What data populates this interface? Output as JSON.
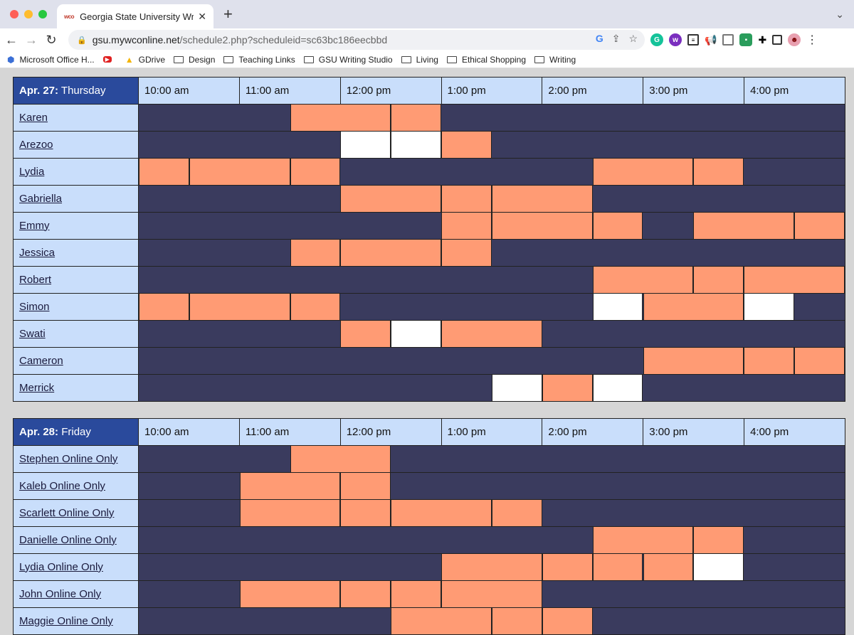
{
  "browser": {
    "tab_title": "Georgia State University Writin",
    "tab_favicon": "wco",
    "url_host": "gsu.mywconline.net",
    "url_path": "/schedule2.php?scheduleid=sc63bc186eecbbd"
  },
  "bookmarks": [
    {
      "label": "Microsoft Office H...",
      "icon": "office-icon"
    },
    {
      "label": "",
      "icon": "youtube-icon"
    },
    {
      "label": "GDrive",
      "icon": "gdrive-icon"
    },
    {
      "label": "Design",
      "icon": "folder-icon"
    },
    {
      "label": "Teaching Links",
      "icon": "folder-icon"
    },
    {
      "label": "GSU Writing Studio",
      "icon": "folder-icon"
    },
    {
      "label": "Living",
      "icon": "folder-icon"
    },
    {
      "label": "Ethical Shopping",
      "icon": "folder-icon"
    },
    {
      "label": "Writing",
      "icon": "folder-icon"
    }
  ],
  "colors": {
    "unavailable": "#3a3b5e",
    "available": "#ff9b74",
    "open": "#ffffff",
    "header_day": "#2a4a9c",
    "header_bg": "#c9defb"
  },
  "times": [
    "10:00 am",
    "11:00 am",
    "12:00 pm",
    "1:00 pm",
    "2:00 pm",
    "3:00 pm",
    "4:00 pm"
  ],
  "days": [
    {
      "date": "Apr. 27:",
      "weekday": " Thursday",
      "rows": [
        {
          "name": "Karen",
          "slots": [
            [
              1.5,
              2.5,
              "o"
            ],
            [
              2.5,
              3,
              "o"
            ]
          ]
        },
        {
          "name": "Arezoo",
          "slots": [
            [
              2,
              2.5,
              "w"
            ],
            [
              2.5,
              3,
              "w"
            ],
            [
              3,
              3.5,
              "o"
            ]
          ]
        },
        {
          "name": "Lydia",
          "slots": [
            [
              0,
              0.5,
              "o"
            ],
            [
              0.5,
              1.5,
              "o"
            ],
            [
              1.5,
              2,
              "o"
            ],
            [
              4.5,
              5.5,
              "o"
            ],
            [
              5.5,
              6,
              "o"
            ]
          ]
        },
        {
          "name": "Gabriella",
          "slots": [
            [
              2,
              3,
              "o"
            ],
            [
              3,
              3.5,
              "o"
            ],
            [
              3.5,
              4.5,
              "o"
            ]
          ]
        },
        {
          "name": "Emmy",
          "slots": [
            [
              3,
              3.5,
              "o"
            ],
            [
              3.5,
              4.5,
              "o"
            ],
            [
              4.5,
              5,
              "o"
            ],
            [
              5.5,
              6.5,
              "o"
            ],
            [
              6.5,
              7,
              "o"
            ]
          ]
        },
        {
          "name": "Jessica",
          "slots": [
            [
              1.5,
              2,
              "o"
            ],
            [
              2,
              3,
              "o"
            ],
            [
              3,
              3.5,
              "o"
            ]
          ]
        },
        {
          "name": "Robert",
          "slots": [
            [
              4.5,
              5.5,
              "o"
            ],
            [
              5.5,
              6,
              "o"
            ],
            [
              6,
              7,
              "o"
            ]
          ]
        },
        {
          "name": "Simon",
          "slots": [
            [
              0,
              0.5,
              "o"
            ],
            [
              0.5,
              1.5,
              "o"
            ],
            [
              1.5,
              2,
              "o"
            ],
            [
              4.5,
              5,
              "w"
            ],
            [
              5,
              6,
              "o"
            ],
            [
              6,
              6.5,
              "w"
            ]
          ]
        },
        {
          "name": "Swati",
          "slots": [
            [
              2,
              2.5,
              "o"
            ],
            [
              2.5,
              3,
              "w"
            ],
            [
              3,
              4,
              "o"
            ]
          ]
        },
        {
          "name": "Cameron",
          "slots": [
            [
              5,
              6,
              "o"
            ],
            [
              6,
              6.5,
              "o"
            ],
            [
              6.5,
              7,
              "o"
            ]
          ]
        },
        {
          "name": "Merrick",
          "slots": [
            [
              3.5,
              4,
              "w"
            ],
            [
              4,
              4.5,
              "o"
            ],
            [
              4.5,
              5,
              "w"
            ]
          ]
        }
      ]
    },
    {
      "date": "Apr. 28:",
      "weekday": " Friday",
      "rows": [
        {
          "name": "Stephen Online Only",
          "slots": [
            [
              1.5,
              2.5,
              "o"
            ]
          ]
        },
        {
          "name": "Kaleb Online Only",
          "slots": [
            [
              1,
              2,
              "o"
            ],
            [
              2,
              2.5,
              "o"
            ]
          ]
        },
        {
          "name": "Scarlett Online Only",
          "slots": [
            [
              1,
              2,
              "o"
            ],
            [
              2,
              2.5,
              "o"
            ],
            [
              2.5,
              3.5,
              "o"
            ],
            [
              3.5,
              4,
              "o"
            ]
          ]
        },
        {
          "name": "Danielle Online Only",
          "slots": [
            [
              4.5,
              5.5,
              "o"
            ],
            [
              5.5,
              6,
              "o"
            ]
          ]
        },
        {
          "name": "Lydia Online Only",
          "slots": [
            [
              3,
              4,
              "o"
            ],
            [
              4,
              4.5,
              "o"
            ],
            [
              4.5,
              5,
              "o"
            ],
            [
              5,
              5.5,
              "o"
            ],
            [
              5.5,
              6,
              "w"
            ]
          ]
        },
        {
          "name": "John Online Only",
          "slots": [
            [
              1,
              2,
              "o"
            ],
            [
              2,
              2.5,
              "o"
            ],
            [
              2.5,
              3,
              "o"
            ],
            [
              3,
              4,
              "o"
            ]
          ]
        },
        {
          "name": "Maggie Online Only",
          "slots": [
            [
              2.5,
              3.5,
              "o"
            ],
            [
              3.5,
              4,
              "o"
            ],
            [
              4,
              4.5,
              "o"
            ]
          ]
        }
      ]
    }
  ]
}
